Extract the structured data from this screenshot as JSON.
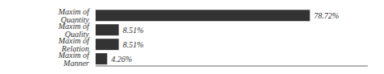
{
  "chart_data": {
    "type": "bar",
    "orientation": "horizontal",
    "categories": [
      "Maxim of Quantity",
      "Maxim of Quality",
      "Maxim of Relation",
      "Maxim of Manner"
    ],
    "values": [
      78.72,
      8.51,
      8.51,
      4.26
    ],
    "value_labels": [
      "78.72%",
      "8.51%",
      "8.51%",
      "4.26%"
    ],
    "data_labels": true,
    "color": "#333333",
    "xlim": [
      0,
      100
    ],
    "tick_labels": "y",
    "grid": false
  }
}
